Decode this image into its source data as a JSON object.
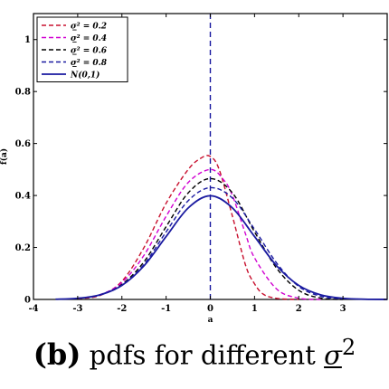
{
  "chart_data": {
    "type": "line",
    "xlabel": "a",
    "ylabel": "f(a)",
    "xlim": [
      -4,
      4
    ],
    "ylim": [
      0,
      1.1
    ],
    "x_ticks": [
      -4,
      -3,
      -2,
      -1,
      0,
      1,
      2,
      3
    ],
    "y_ticks": [
      0,
      0.2,
      0.4,
      0.6,
      0.8,
      1
    ],
    "x_tick_labels": [
      "-4",
      "-3",
      "-2",
      "-1",
      "0",
      "1",
      "2",
      "3"
    ],
    "y_tick_labels": [
      "0",
      "0.2",
      "0.4",
      "0.6",
      "0.8",
      "1"
    ],
    "grid": false,
    "legend_position": "top-left",
    "vertical_line": {
      "x": 0,
      "color": "#1a1aa0",
      "style": "dashed"
    },
    "series": [
      {
        "name": "σ̲² = 0.2",
        "color": "#c8102e",
        "style": "dashed",
        "x": [
          -3,
          -2.5,
          -2,
          -1.5,
          -1,
          -0.5,
          -0.2,
          0,
          0.2,
          0.5,
          0.8,
          1,
          1.2,
          1.5,
          2
        ],
        "y": [
          0.003,
          0.015,
          0.07,
          0.2,
          0.37,
          0.5,
          0.545,
          0.55,
          0.5,
          0.32,
          0.13,
          0.06,
          0.02,
          0.004,
          0
        ]
      },
      {
        "name": "σ̲² = 0.4",
        "color": "#d100d1",
        "style": "dashed",
        "x": [
          -3,
          -2.5,
          -2,
          -1.5,
          -1,
          -0.5,
          0,
          0.3,
          0.5,
          0.8,
          1,
          1.5,
          2,
          2.5
        ],
        "y": [
          0.004,
          0.018,
          0.065,
          0.17,
          0.32,
          0.45,
          0.5,
          0.46,
          0.4,
          0.25,
          0.16,
          0.04,
          0.005,
          0
        ]
      },
      {
        "name": "σ̲² = 0.6",
        "color": "#000000",
        "style": "dashed",
        "x": [
          -3,
          -2.5,
          -2,
          -1.5,
          -1,
          -0.5,
          0,
          0.5,
          1,
          1.5,
          2,
          2.5,
          3
        ],
        "y": [
          0.004,
          0.017,
          0.058,
          0.145,
          0.28,
          0.41,
          0.465,
          0.41,
          0.26,
          0.12,
          0.035,
          0.005,
          0
        ]
      },
      {
        "name": "σ̲² = 0.8",
        "color": "#1a1aa0",
        "style": "dashed",
        "x": [
          -3,
          -2.5,
          -2,
          -1.5,
          -1,
          -0.5,
          0,
          0.5,
          1,
          1.5,
          2,
          2.5,
          3
        ],
        "y": [
          0.004,
          0.017,
          0.055,
          0.135,
          0.26,
          0.38,
          0.43,
          0.39,
          0.27,
          0.14,
          0.05,
          0.012,
          0.002
        ]
      },
      {
        "name": "N(0,1)",
        "color": "#1a1aa0",
        "style": "solid",
        "x": [
          -3.5,
          -3,
          -2.5,
          -2,
          -1.5,
          -1,
          -0.5,
          0,
          0.5,
          1,
          1.5,
          2,
          2.5,
          3,
          3.5,
          4
        ],
        "y": [
          0.0009,
          0.0044,
          0.0175,
          0.054,
          0.1295,
          0.242,
          0.352,
          0.399,
          0.352,
          0.242,
          0.1295,
          0.054,
          0.0175,
          0.0044,
          0.0009,
          0.0001
        ]
      }
    ]
  },
  "caption": {
    "label": "(b)",
    "text": "pdfs for different",
    "symbol": "σ",
    "superscript": "2"
  }
}
